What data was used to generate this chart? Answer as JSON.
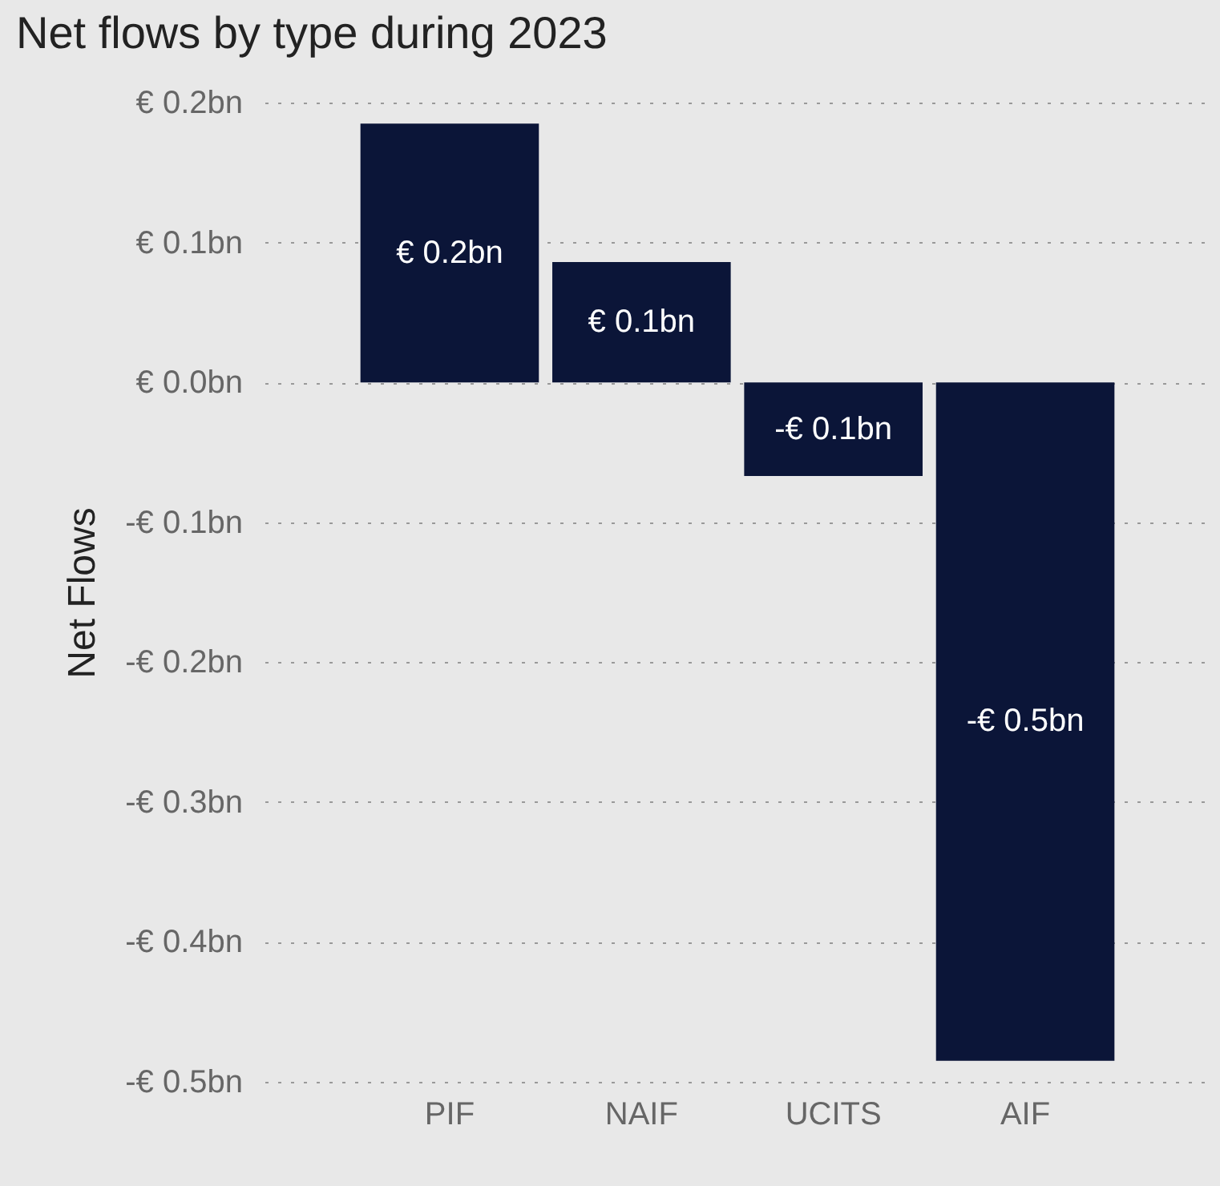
{
  "chart_data": {
    "type": "bar",
    "title": "Net flows by type during 2023",
    "ylabel": "Net Flows",
    "categories": [
      "PIF",
      "NAIF",
      "UCITS",
      "AIF"
    ],
    "values": [
      0.185,
      0.086,
      -0.067,
      -0.485
    ],
    "value_labels": [
      "€ 0.2bn",
      "€ 0.1bn",
      "-€ 0.1bn",
      "-€ 0.5bn"
    ],
    "color": "#0b1538",
    "ylim": [
      -0.5,
      0.2
    ],
    "yticks": [
      {
        "value": 0.2,
        "label": "€ 0.2bn"
      },
      {
        "value": 0.1,
        "label": "€ 0.1bn"
      },
      {
        "value": 0,
        "label": "€ 0.0bn"
      },
      {
        "value": -0.1,
        "label": "-€ 0.1bn"
      },
      {
        "value": -0.2,
        "label": "-€ 0.2bn"
      },
      {
        "value": -0.3,
        "label": "-€ 0.3bn"
      },
      {
        "value": -0.4,
        "label": "-€ 0.4bn"
      },
      {
        "value": -0.5,
        "label": "-€ 0.5bn"
      }
    ],
    "grid": "y"
  }
}
